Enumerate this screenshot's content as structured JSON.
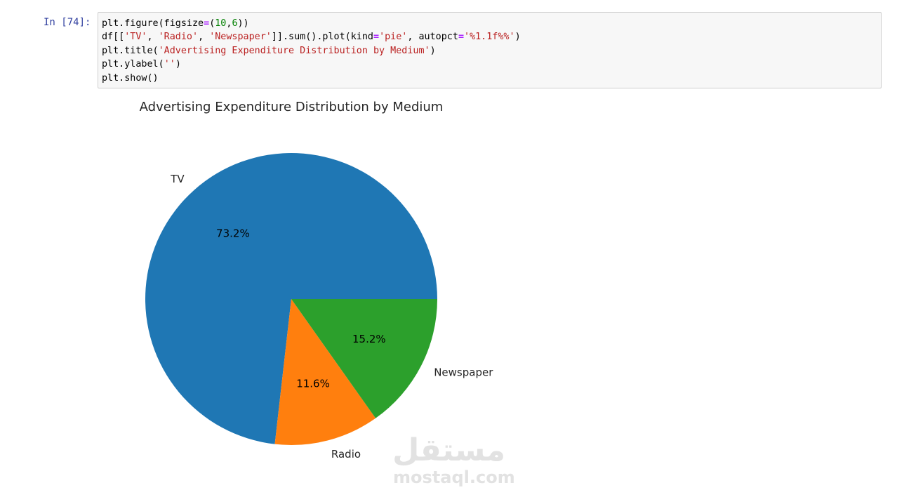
{
  "cell": {
    "prompt": "In [74]:",
    "code": {
      "l1_a": "plt.figure(figsize",
      "l1_eq": "=",
      "l1_b": "(",
      "l1_n1": "10",
      "l1_c": ",",
      "l1_n2": "6",
      "l1_d": "))",
      "l2_a": "df[[",
      "l2_s1": "'TV'",
      "l2_b": ", ",
      "l2_s2": "'Radio'",
      "l2_c": ", ",
      "l2_s3": "'Newspaper'",
      "l2_d": "]].sum().plot(kind",
      "l2_eq1": "=",
      "l2_s4": "'pie'",
      "l2_e": ", autopct",
      "l2_eq2": "=",
      "l2_s5": "'%1.1f%%'",
      "l2_f": ")",
      "l3_a": "plt.title(",
      "l3_s": "'Advertising Expenditure Distribution by Medium'",
      "l3_b": ")",
      "l4_a": "plt.ylabel(",
      "l4_s": "''",
      "l4_b": ")",
      "l5": "plt.show()"
    }
  },
  "chart_data": {
    "type": "pie",
    "title": "Advertising Expenditure Distribution by Medium",
    "ylabel": "",
    "categories": [
      "TV",
      "Radio",
      "Newspaper"
    ],
    "values": [
      73.2,
      11.6,
      15.2
    ],
    "labels_pct": [
      "73.2%",
      "11.6%",
      "15.2%"
    ],
    "colors": [
      "#1f77b4",
      "#ff7f0e",
      "#2ca02c"
    ],
    "start_angle_deg": 0,
    "direction": "counterclockwise"
  },
  "watermark": {
    "arabic": "مستقل",
    "latin": "mostaql.com"
  }
}
